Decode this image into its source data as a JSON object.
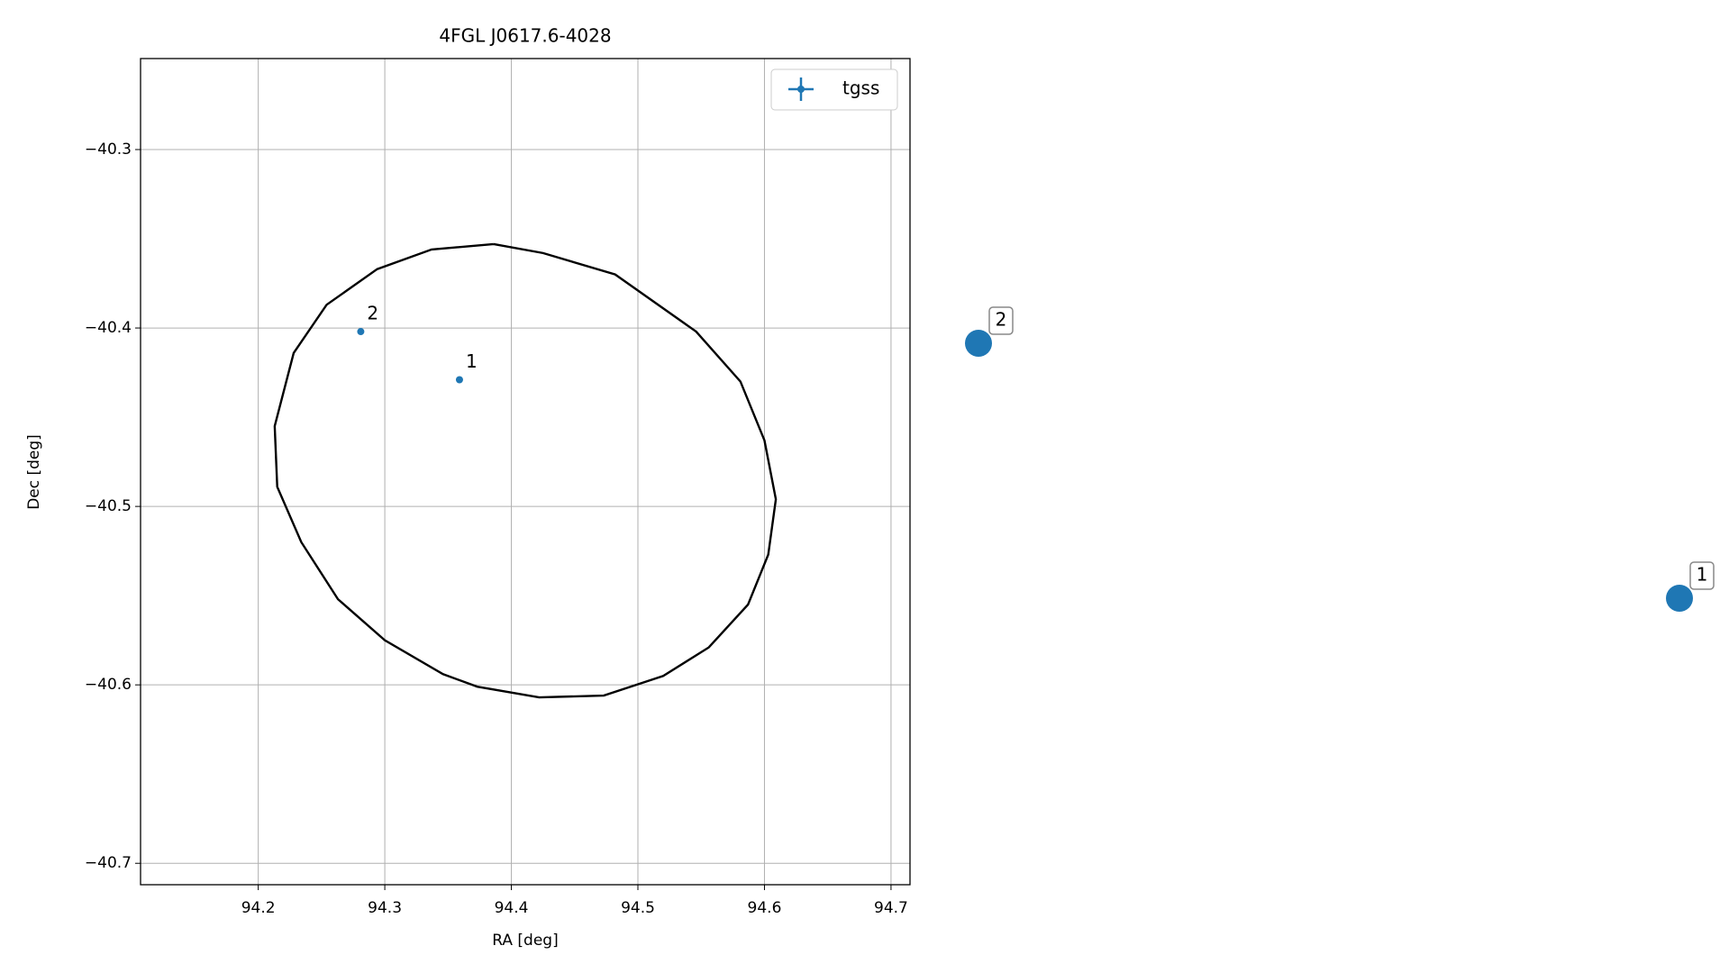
{
  "chart_data": [
    {
      "type": "scatter",
      "title": "4FGL J0617.6-4028",
      "xlabel": "RA [deg]",
      "ylabel": "Dec [deg]",
      "xlim": [
        94.107,
        94.715
      ],
      "ylim": [
        -40.712,
        -40.249
      ],
      "xticks": [
        94.2,
        94.3,
        94.4,
        94.5,
        94.6,
        94.7
      ],
      "yticks": [
        {
          "value": -40.3,
          "label": "−40.3"
        },
        {
          "value": -40.4,
          "label": "−40.4"
        },
        {
          "value": -40.5,
          "label": "−40.5"
        },
        {
          "value": -40.6,
          "label": "−40.6"
        },
        {
          "value": -40.7,
          "label": "−40.7"
        }
      ],
      "grid": true,
      "legend": "upper right",
      "series": [
        {
          "name": "tgss",
          "color": "#1f77b4",
          "x": [
            94.359,
            94.281
          ],
          "values": [
            -40.429,
            -40.402
          ],
          "labels": [
            "1",
            "2"
          ]
        }
      ],
      "ellipse": {
        "color": "#000000",
        "x": [
          94.386,
          94.425,
          94.482,
          94.546,
          94.581,
          94.6,
          94.609,
          94.603,
          94.587,
          94.556,
          94.52,
          94.473,
          94.422,
          94.373,
          94.346,
          94.3,
          94.263,
          94.234,
          94.215,
          94.213,
          94.228,
          94.254,
          94.294,
          94.337,
          94.386
        ],
        "values": [
          -40.353,
          -40.358,
          -40.37,
          -40.402,
          -40.43,
          -40.463,
          -40.496,
          -40.527,
          -40.555,
          -40.579,
          -40.595,
          -40.606,
          -40.607,
          -40.601,
          -40.594,
          -40.575,
          -40.552,
          -40.52,
          -40.489,
          -40.455,
          -40.414,
          -40.387,
          -40.367,
          -40.356,
          -40.353
        ]
      }
    },
    {
      "type": "markers",
      "color": "#1f77b4",
      "labels": [
        "2",
        "1"
      ]
    }
  ]
}
